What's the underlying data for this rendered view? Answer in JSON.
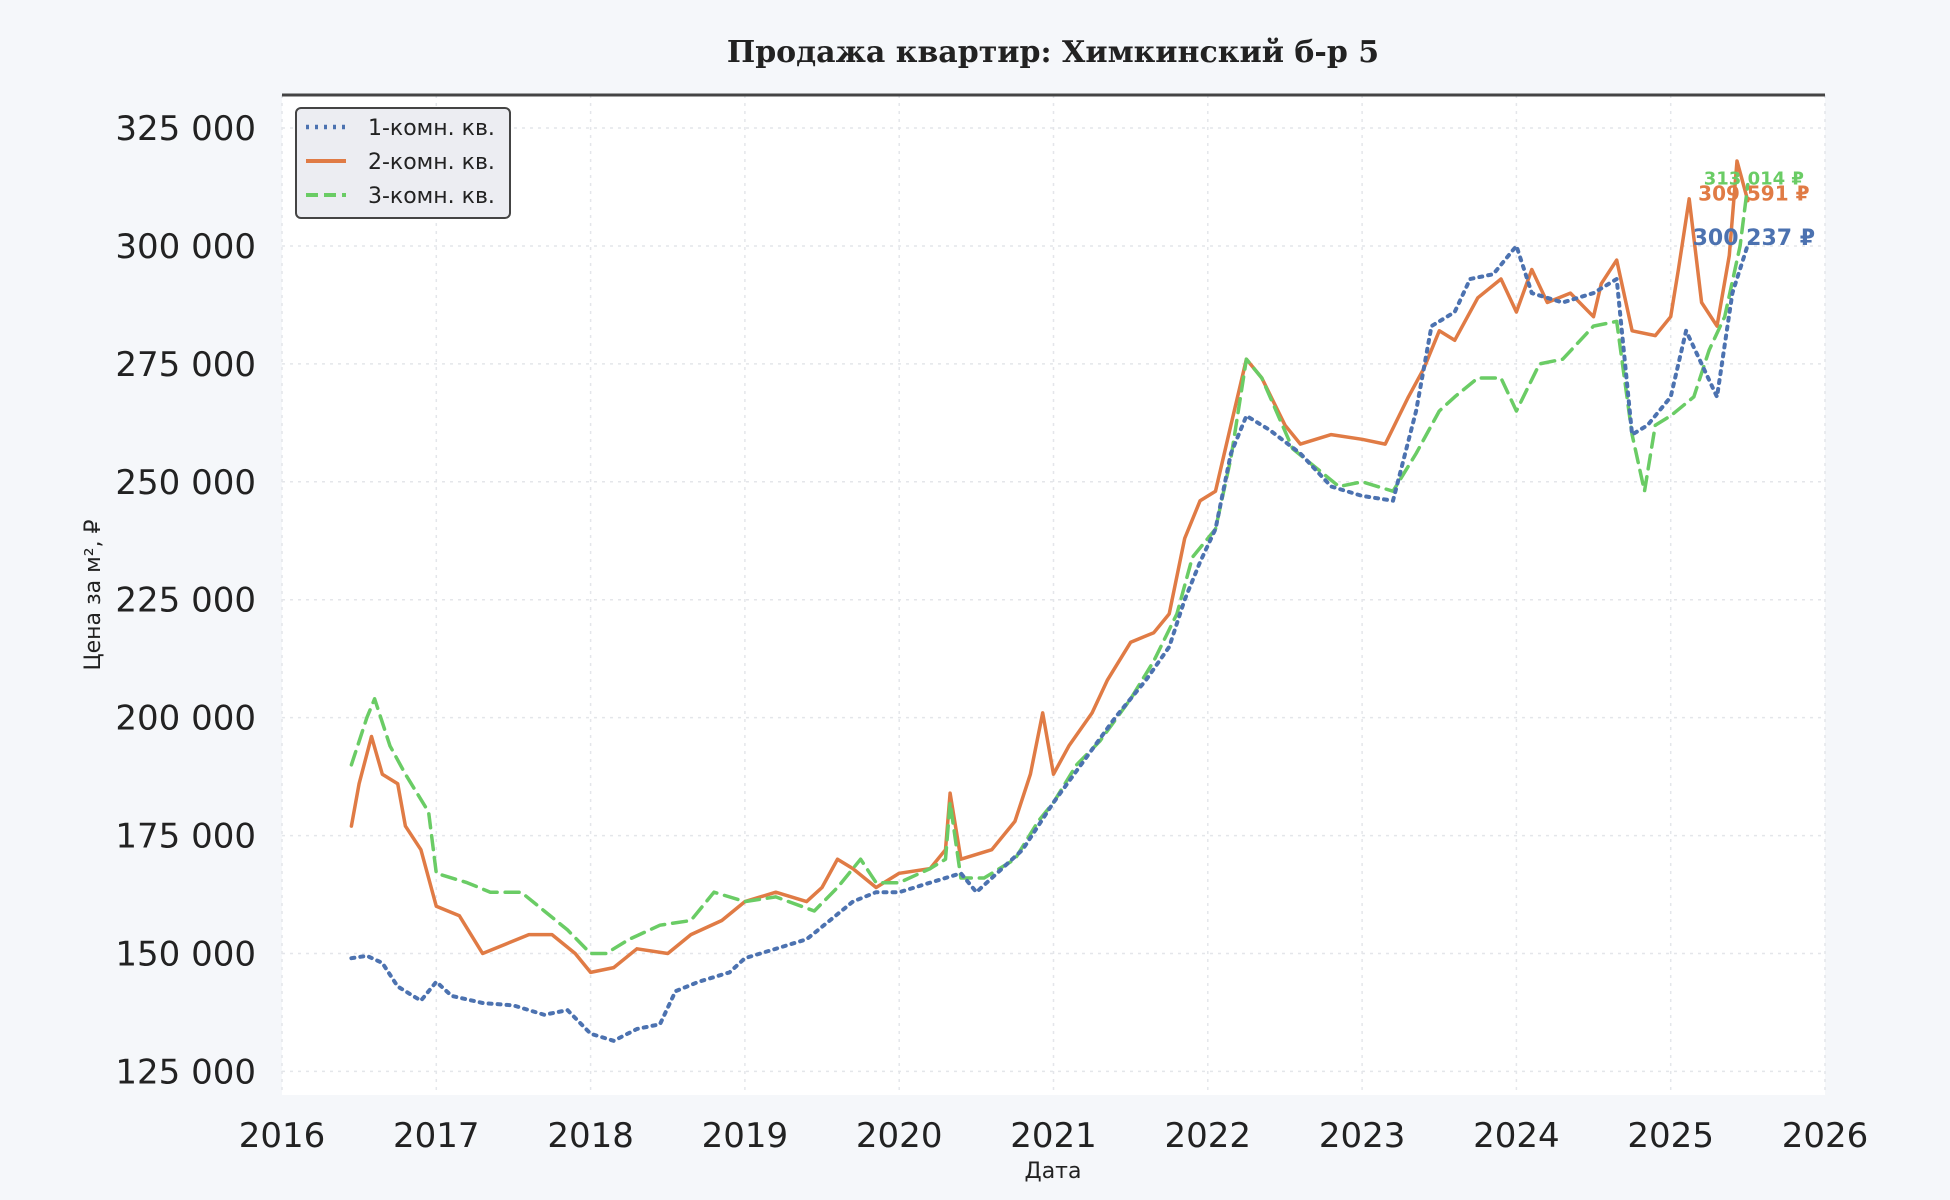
{
  "chart_data": {
    "type": "line",
    "title": "Продажа квартир: Химкинский б-р 5",
    "xlabel": "Дата",
    "ylabel": "Цена за м², ₽",
    "xlim": [
      2016,
      2026
    ],
    "ylim": [
      120000,
      332000
    ],
    "x_ticks": [
      2016,
      2017,
      2018,
      2019,
      2020,
      2021,
      2022,
      2023,
      2024,
      2025,
      2026
    ],
    "y_ticks": [
      125000,
      150000,
      175000,
      200000,
      225000,
      250000,
      275000,
      300000,
      325000
    ],
    "y_tick_labels": [
      "125 000",
      "150 000",
      "175 000",
      "200 000",
      "225 000",
      "250 000",
      "275 000",
      "300 000",
      "325 000"
    ],
    "grid": true,
    "legend_position": "top-left",
    "series": [
      {
        "name": "1-комн. кв.",
        "color": "#4c72b0",
        "style": "dotted",
        "end_label": "300 237 ₽",
        "points": [
          [
            2016.45,
            149000
          ],
          [
            2016.55,
            149500
          ],
          [
            2016.65,
            148000
          ],
          [
            2016.75,
            143000
          ],
          [
            2016.9,
            140000
          ],
          [
            2017.0,
            144000
          ],
          [
            2017.1,
            141000
          ],
          [
            2017.3,
            139500
          ],
          [
            2017.5,
            139000
          ],
          [
            2017.7,
            137000
          ],
          [
            2017.85,
            138000
          ],
          [
            2018.0,
            133000
          ],
          [
            2018.15,
            131500
          ],
          [
            2018.3,
            134000
          ],
          [
            2018.45,
            135000
          ],
          [
            2018.55,
            142000
          ],
          [
            2018.7,
            144000
          ],
          [
            2018.9,
            146000
          ],
          [
            2019.0,
            149000
          ],
          [
            2019.2,
            151000
          ],
          [
            2019.4,
            153000
          ],
          [
            2019.55,
            157000
          ],
          [
            2019.7,
            161000
          ],
          [
            2019.85,
            163000
          ],
          [
            2020.0,
            163000
          ],
          [
            2020.2,
            165000
          ],
          [
            2020.4,
            167000
          ],
          [
            2020.5,
            163000
          ],
          [
            2020.6,
            166000
          ],
          [
            2020.8,
            172000
          ],
          [
            2021.0,
            182000
          ],
          [
            2021.2,
            191000
          ],
          [
            2021.4,
            200000
          ],
          [
            2021.6,
            208000
          ],
          [
            2021.75,
            215000
          ],
          [
            2021.85,
            225000
          ],
          [
            2021.95,
            233000
          ],
          [
            2022.05,
            240000
          ],
          [
            2022.15,
            256000
          ],
          [
            2022.25,
            264000
          ],
          [
            2022.4,
            261000
          ],
          [
            2022.6,
            256000
          ],
          [
            2022.8,
            249000
          ],
          [
            2023.0,
            247000
          ],
          [
            2023.2,
            246000
          ],
          [
            2023.35,
            265000
          ],
          [
            2023.45,
            283000
          ],
          [
            2023.6,
            286000
          ],
          [
            2023.7,
            293000
          ],
          [
            2023.85,
            294000
          ],
          [
            2024.0,
            300000
          ],
          [
            2024.1,
            290000
          ],
          [
            2024.3,
            288000
          ],
          [
            2024.5,
            290000
          ],
          [
            2024.65,
            293000
          ],
          [
            2024.75,
            260000
          ],
          [
            2024.85,
            262000
          ],
          [
            2025.0,
            268000
          ],
          [
            2025.1,
            282000
          ],
          [
            2025.2,
            275000
          ],
          [
            2025.3,
            268000
          ],
          [
            2025.4,
            290000
          ],
          [
            2025.5,
            300237
          ]
        ]
      },
      {
        "name": "2-комн. кв.",
        "color": "#e07b45",
        "style": "solid",
        "end_label": "309 591 ₽",
        "points": [
          [
            2016.45,
            177000
          ],
          [
            2016.5,
            186000
          ],
          [
            2016.58,
            196000
          ],
          [
            2016.65,
            188000
          ],
          [
            2016.75,
            186000
          ],
          [
            2016.8,
            177000
          ],
          [
            2016.9,
            172000
          ],
          [
            2017.0,
            160000
          ],
          [
            2017.15,
            158000
          ],
          [
            2017.3,
            150000
          ],
          [
            2017.45,
            152000
          ],
          [
            2017.6,
            154000
          ],
          [
            2017.75,
            154000
          ],
          [
            2017.9,
            150000
          ],
          [
            2018.0,
            146000
          ],
          [
            2018.15,
            147000
          ],
          [
            2018.3,
            151000
          ],
          [
            2018.5,
            150000
          ],
          [
            2018.65,
            154000
          ],
          [
            2018.85,
            157000
          ],
          [
            2019.0,
            161000
          ],
          [
            2019.2,
            163000
          ],
          [
            2019.4,
            161000
          ],
          [
            2019.5,
            164000
          ],
          [
            2019.6,
            170000
          ],
          [
            2019.7,
            168000
          ],
          [
            2019.85,
            164000
          ],
          [
            2020.0,
            167000
          ],
          [
            2020.2,
            168000
          ],
          [
            2020.3,
            172000
          ],
          [
            2020.33,
            184000
          ],
          [
            2020.4,
            170000
          ],
          [
            2020.6,
            172000
          ],
          [
            2020.75,
            178000
          ],
          [
            2020.85,
            188000
          ],
          [
            2020.93,
            201000
          ],
          [
            2021.0,
            188000
          ],
          [
            2021.1,
            194000
          ],
          [
            2021.25,
            201000
          ],
          [
            2021.35,
            208000
          ],
          [
            2021.5,
            216000
          ],
          [
            2021.65,
            218000
          ],
          [
            2021.75,
            222000
          ],
          [
            2021.85,
            238000
          ],
          [
            2021.95,
            246000
          ],
          [
            2022.05,
            248000
          ],
          [
            2022.15,
            262000
          ],
          [
            2022.25,
            276000
          ],
          [
            2022.35,
            272000
          ],
          [
            2022.5,
            262000
          ],
          [
            2022.6,
            258000
          ],
          [
            2022.8,
            260000
          ],
          [
            2023.0,
            259000
          ],
          [
            2023.15,
            258000
          ],
          [
            2023.3,
            268000
          ],
          [
            2023.4,
            274000
          ],
          [
            2023.5,
            282000
          ],
          [
            2023.6,
            280000
          ],
          [
            2023.75,
            289000
          ],
          [
            2023.9,
            293000
          ],
          [
            2024.0,
            286000
          ],
          [
            2024.1,
            295000
          ],
          [
            2024.2,
            288000
          ],
          [
            2024.35,
            290000
          ],
          [
            2024.5,
            285000
          ],
          [
            2024.55,
            292000
          ],
          [
            2024.65,
            297000
          ],
          [
            2024.75,
            282000
          ],
          [
            2024.9,
            281000
          ],
          [
            2025.0,
            285000
          ],
          [
            2025.05,
            295000
          ],
          [
            2025.12,
            310000
          ],
          [
            2025.2,
            288000
          ],
          [
            2025.3,
            283000
          ],
          [
            2025.38,
            298000
          ],
          [
            2025.43,
            318000
          ],
          [
            2025.5,
            309591
          ]
        ]
      },
      {
        "name": "3-комн. кв.",
        "color": "#6acc65",
        "style": "dashed",
        "end_label": "313 014 ₽",
        "points": [
          [
            2016.45,
            190000
          ],
          [
            2016.55,
            200000
          ],
          [
            2016.6,
            204000
          ],
          [
            2016.7,
            194000
          ],
          [
            2016.8,
            188000
          ],
          [
            2016.95,
            180000
          ],
          [
            2017.0,
            167000
          ],
          [
            2017.2,
            165000
          ],
          [
            2017.35,
            163000
          ],
          [
            2017.55,
            163000
          ],
          [
            2017.7,
            159000
          ],
          [
            2017.85,
            155000
          ],
          [
            2018.0,
            150000
          ],
          [
            2018.1,
            150000
          ],
          [
            2018.25,
            153000
          ],
          [
            2018.45,
            156000
          ],
          [
            2018.65,
            157000
          ],
          [
            2018.8,
            163000
          ],
          [
            2019.0,
            161000
          ],
          [
            2019.2,
            162000
          ],
          [
            2019.45,
            159000
          ],
          [
            2019.6,
            164000
          ],
          [
            2019.75,
            170000
          ],
          [
            2019.85,
            165000
          ],
          [
            2020.0,
            165000
          ],
          [
            2020.2,
            168000
          ],
          [
            2020.3,
            170000
          ],
          [
            2020.33,
            182000
          ],
          [
            2020.4,
            166000
          ],
          [
            2020.55,
            166000
          ],
          [
            2020.75,
            170000
          ],
          [
            2020.9,
            178000
          ],
          [
            2021.0,
            182000
          ],
          [
            2021.15,
            190000
          ],
          [
            2021.3,
            195000
          ],
          [
            2021.5,
            204000
          ],
          [
            2021.65,
            212000
          ],
          [
            2021.8,
            222000
          ],
          [
            2021.9,
            234000
          ],
          [
            2022.05,
            240000
          ],
          [
            2022.15,
            255000
          ],
          [
            2022.25,
            276000
          ],
          [
            2022.35,
            272000
          ],
          [
            2022.55,
            257000
          ],
          [
            2022.7,
            253000
          ],
          [
            2022.85,
            249000
          ],
          [
            2023.0,
            250000
          ],
          [
            2023.2,
            248000
          ],
          [
            2023.35,
            256000
          ],
          [
            2023.5,
            265000
          ],
          [
            2023.6,
            268000
          ],
          [
            2023.75,
            272000
          ],
          [
            2023.9,
            272000
          ],
          [
            2024.0,
            265000
          ],
          [
            2024.15,
            275000
          ],
          [
            2024.3,
            276000
          ],
          [
            2024.5,
            283000
          ],
          [
            2024.65,
            284000
          ],
          [
            2024.75,
            260000
          ],
          [
            2024.83,
            248000
          ],
          [
            2024.9,
            262000
          ],
          [
            2025.0,
            264000
          ],
          [
            2025.15,
            268000
          ],
          [
            2025.25,
            278000
          ],
          [
            2025.35,
            285000
          ],
          [
            2025.45,
            300000
          ],
          [
            2025.5,
            313014
          ]
        ]
      }
    ]
  }
}
